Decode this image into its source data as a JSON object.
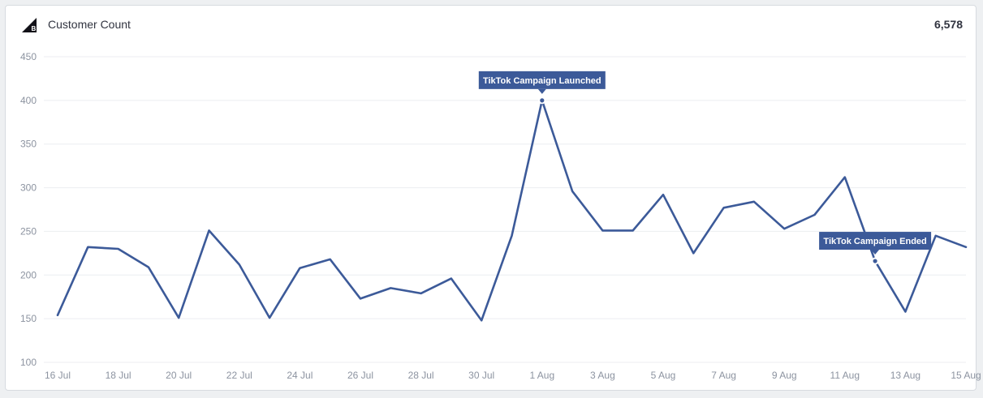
{
  "header": {
    "logo_icon": "bigcommerce-logo-icon",
    "title": "Customer Count",
    "total": "6,578"
  },
  "chart_data": {
    "type": "line",
    "title": "Customer Count",
    "xlabel": "",
    "ylabel": "",
    "ylim": [
      100,
      450
    ],
    "yticks": [
      100,
      150,
      200,
      250,
      300,
      350,
      400,
      450
    ],
    "grid": true,
    "color": "#3c5a99",
    "x_tick_labels": [
      "16 Jul",
      "18 Jul",
      "20 Jul",
      "22 Jul",
      "24 Jul",
      "26 Jul",
      "28 Jul",
      "30 Jul",
      "1 Aug",
      "3 Aug",
      "5 Aug",
      "7 Aug",
      "9 Aug",
      "11 Aug",
      "13 Aug",
      "15 Aug"
    ],
    "x": [
      "16 Jul",
      "17 Jul",
      "18 Jul",
      "19 Jul",
      "20 Jul",
      "21 Jul",
      "22 Jul",
      "23 Jul",
      "24 Jul",
      "25 Jul",
      "26 Jul",
      "27 Jul",
      "28 Jul",
      "29 Jul",
      "30 Jul",
      "31 Jul",
      "1 Aug",
      "2 Aug",
      "3 Aug",
      "4 Aug",
      "5 Aug",
      "6 Aug",
      "7 Aug",
      "8 Aug",
      "9 Aug",
      "10 Aug",
      "11 Aug",
      "12 Aug",
      "13 Aug",
      "14 Aug",
      "15 Aug"
    ],
    "series": [
      {
        "values": [
          154,
          232,
          230,
          209,
          151,
          251,
          212,
          151,
          208,
          218,
          173,
          185,
          179,
          196,
          148,
          245,
          400,
          296,
          251,
          251,
          292,
          225,
          277,
          284,
          253,
          269,
          312,
          216,
          158,
          245,
          232
        ]
      }
    ],
    "annotations": [
      {
        "text": "TikTok Campaign Launched",
        "x": "1 Aug",
        "y": 400
      },
      {
        "text": "TikTok Campaign Ended",
        "x": "12 Aug",
        "y": 216
      }
    ]
  }
}
